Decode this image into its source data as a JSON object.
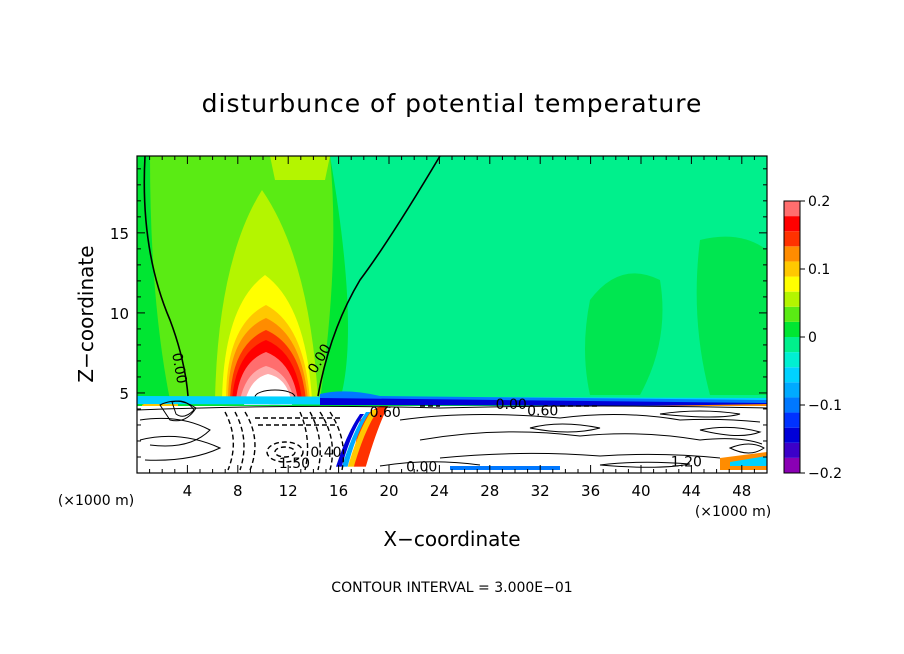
{
  "chart_data": {
    "type": "heatmap",
    "title": "disturbunce of potential temperature",
    "xlabel": "X−coordinate",
    "ylabel": "Z−coordinate",
    "x_unit_label_left": "(×1000 m)",
    "x_unit_label_right": "(×1000 m)",
    "footer": "CONTOUR INTERVAL = 3.000E−01",
    "xlim": [
      0,
      50
    ],
    "ylim": [
      0,
      19.8
    ],
    "xticks": [
      4,
      8,
      12,
      16,
      20,
      24,
      28,
      32,
      36,
      40,
      44,
      48
    ],
    "xtick_labels": [
      "4",
      "8",
      "12",
      "16",
      "20",
      "24",
      "28",
      "32",
      "36",
      "40",
      "44",
      "48"
    ],
    "yticks": [
      5,
      10,
      15
    ],
    "ytick_labels": [
      "5",
      "10",
      "15"
    ],
    "colorbar": {
      "range": [
        -0.2,
        0.2
      ],
      "tick_values": [
        0.2,
        0.1,
        0,
        -0.1,
        -0.2
      ],
      "tick_labels": [
        "0.2",
        "0.1",
        "0",
        "−0.1",
        "−0.2"
      ],
      "levels": [
        {
          "value": -0.2,
          "color": "#8a00b4"
        },
        {
          "value": -0.175,
          "color": "#3c00c8"
        },
        {
          "value": -0.15,
          "color": "#0000d8"
        },
        {
          "value": -0.125,
          "color": "#0032ff"
        },
        {
          "value": -0.1,
          "color": "#0078ff"
        },
        {
          "value": -0.075,
          "color": "#00aaff"
        },
        {
          "value": -0.05,
          "color": "#00d2ff"
        },
        {
          "value": -0.025,
          "color": "#00f0d2"
        },
        {
          "value": 0,
          "color": "#00f08c"
        },
        {
          "value": 0.025,
          "color": "#00e632"
        },
        {
          "value": 0.05,
          "color": "#5aeb14"
        },
        {
          "value": 0.075,
          "color": "#b4f500"
        },
        {
          "value": 0.1,
          "color": "#ffff00"
        },
        {
          "value": 0.125,
          "color": "#ffc800"
        },
        {
          "value": 0.15,
          "color": "#ff8c00"
        },
        {
          "value": 0.175,
          "color": "#ff3200"
        },
        {
          "value": 0.2,
          "color": "#ff0000"
        },
        {
          "value": 0.225,
          "color": "#ff6e6e"
        },
        {
          "value": 0.25,
          "color": "#ffaaaa"
        }
      ]
    },
    "contour_labels": [
      {
        "text": "0.00",
        "x": 3.0,
        "y": 6.5,
        "rotate": 80
      },
      {
        "text": "0.00",
        "x": 14.8,
        "y": 7.0,
        "rotate": -60
      },
      {
        "text": "0.00",
        "x": 29.7,
        "y": 4.0,
        "rotate": 0
      },
      {
        "text": "0.60",
        "x": 19.7,
        "y": 3.5,
        "rotate": 0
      },
      {
        "text": "0.60",
        "x": 32.2,
        "y": 3.6,
        "rotate": 0
      },
      {
        "text": "0.00",
        "x": 22.6,
        "y": 0.1,
        "rotate": 0
      },
      {
        "text": "1.20",
        "x": 43.6,
        "y": 0.4,
        "rotate": 0
      },
      {
        "text": "1.50",
        "x": 12.5,
        "y": 0.3,
        "rotate": 0
      },
      {
        "text": "0.40",
        "x": 15.0,
        "y": 1.0,
        "rotate": 0
      }
    ]
  }
}
